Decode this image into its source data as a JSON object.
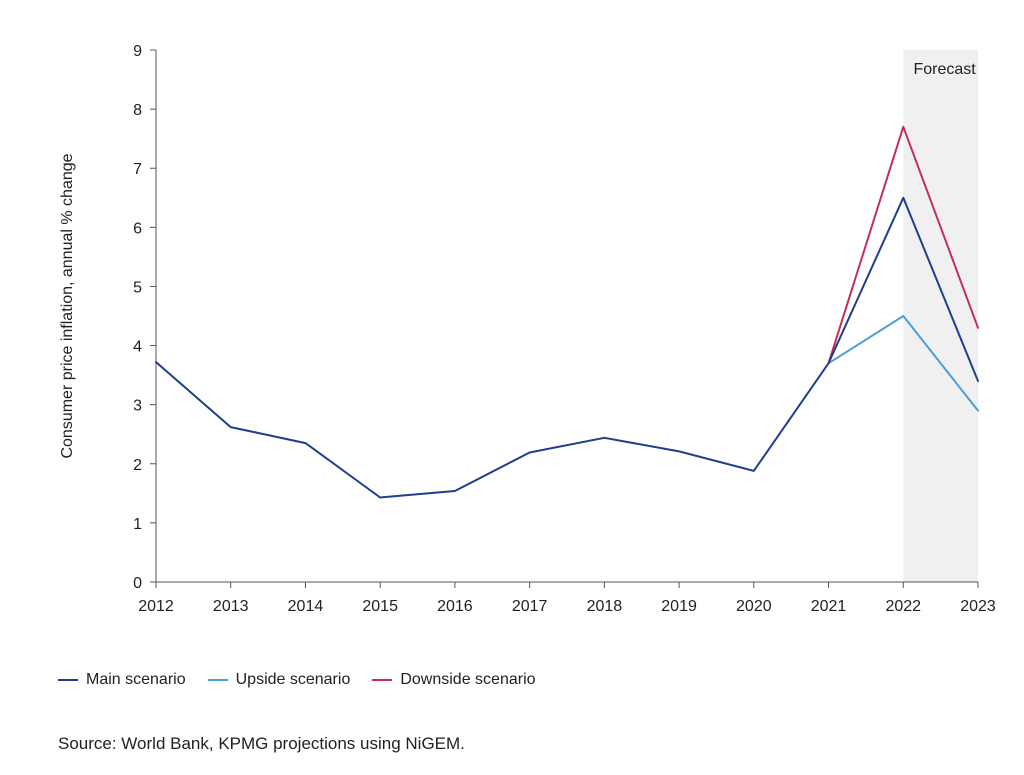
{
  "chart_data": {
    "type": "line",
    "ylabel": "Consumer price inflation, annual % change",
    "xlabel": "",
    "ylim": [
      0,
      9
    ],
    "y_ticks": [
      0,
      1,
      2,
      3,
      4,
      5,
      6,
      7,
      8,
      9
    ],
    "x": [
      "2012",
      "2013",
      "2014",
      "2015",
      "2016",
      "2017",
      "2018",
      "2019",
      "2020",
      "2021",
      "2022",
      "2023"
    ],
    "forecast": {
      "label": "Forecast",
      "from": "2022",
      "to": "2023",
      "color": "#f0f0f0"
    },
    "grid": false,
    "series": [
      {
        "name": "Main scenario",
        "color": "#1f3f8a",
        "values": [
          3.72,
          2.62,
          2.35,
          1.43,
          1.54,
          2.19,
          2.44,
          2.21,
          1.88,
          3.7,
          6.5,
          3.4
        ]
      },
      {
        "name": "Upside scenario",
        "color": "#4a9fd4",
        "values": [
          null,
          null,
          null,
          null,
          null,
          null,
          null,
          null,
          null,
          3.7,
          4.5,
          2.9
        ]
      },
      {
        "name": "Downside scenario",
        "color": "#c0305a",
        "values": [
          null,
          null,
          null,
          null,
          null,
          null,
          null,
          null,
          null,
          3.7,
          7.7,
          4.3
        ]
      }
    ],
    "source": "Source: World Bank, KPMG projections using NiGEM."
  }
}
